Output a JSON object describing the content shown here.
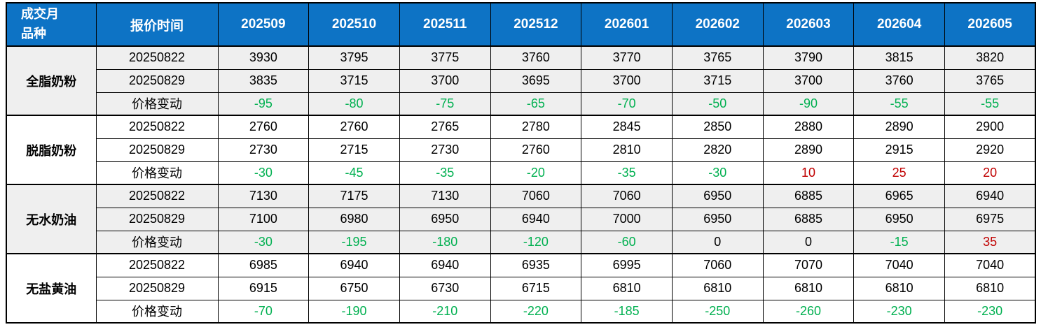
{
  "chart_data": {
    "type": "table",
    "corner_header": {
      "line1": "成交月",
      "line2": "品种"
    },
    "quote_time_header": "报价时间",
    "month_headers": [
      "202509",
      "202510",
      "202511",
      "202512",
      "202601",
      "202602",
      "202603",
      "202604",
      "202605"
    ],
    "groups": [
      {
        "product": "全脂奶粉",
        "shaded": true,
        "rows": [
          {
            "label": "20250822",
            "type": "price",
            "values": [
              "3930",
              "3795",
              "3775",
              "3760",
              "3770",
              "3765",
              "3790",
              "3815",
              "3820"
            ]
          },
          {
            "label": "20250829",
            "type": "price",
            "values": [
              "3835",
              "3715",
              "3700",
              "3695",
              "3700",
              "3715",
              "3700",
              "3760",
              "3765"
            ]
          },
          {
            "label": "价格变动",
            "type": "change",
            "values": [
              "-95",
              "-80",
              "-75",
              "-65",
              "-70",
              "-50",
              "-90",
              "-55",
              "-55"
            ]
          }
        ]
      },
      {
        "product": "脱脂奶粉",
        "shaded": false,
        "rows": [
          {
            "label": "20250822",
            "type": "price",
            "values": [
              "2760",
              "2760",
              "2765",
              "2780",
              "2845",
              "2850",
              "2880",
              "2890",
              "2900"
            ]
          },
          {
            "label": "20250829",
            "type": "price",
            "values": [
              "2730",
              "2715",
              "2730",
              "2760",
              "2810",
              "2820",
              "2890",
              "2915",
              "2920"
            ]
          },
          {
            "label": "价格变动",
            "type": "change",
            "values": [
              "-30",
              "-45",
              "-35",
              "-20",
              "-35",
              "-30",
              "10",
              "25",
              "20"
            ]
          }
        ]
      },
      {
        "product": "无水奶油",
        "shaded": true,
        "rows": [
          {
            "label": "20250822",
            "type": "price",
            "values": [
              "7130",
              "7175",
              "7130",
              "7060",
              "7060",
              "6950",
              "6885",
              "6965",
              "6940"
            ]
          },
          {
            "label": "20250829",
            "type": "price",
            "values": [
              "7100",
              "6980",
              "6950",
              "6940",
              "7000",
              "6950",
              "6885",
              "6950",
              "6975"
            ]
          },
          {
            "label": "价格变动",
            "type": "change",
            "values": [
              "-30",
              "-195",
              "-180",
              "-120",
              "-60",
              "0",
              "0",
              "-15",
              "35"
            ]
          }
        ]
      },
      {
        "product": "无盐黄油",
        "shaded": false,
        "rows": [
          {
            "label": "20250822",
            "type": "price",
            "values": [
              "6985",
              "6940",
              "6940",
              "6935",
              "6995",
              "7060",
              "7070",
              "7040",
              "7040"
            ]
          },
          {
            "label": "20250829",
            "type": "price",
            "values": [
              "6915",
              "6750",
              "6730",
              "6715",
              "6810",
              "6810",
              "6810",
              "6810",
              "6810"
            ]
          },
          {
            "label": "价格变动",
            "type": "change",
            "values": [
              "-70",
              "-190",
              "-210",
              "-220",
              "-185",
              "-250",
              "-260",
              "-230",
              "-230"
            ]
          }
        ]
      }
    ],
    "colors": {
      "header_bg": "#0d73c5",
      "header_text": "#ffffff",
      "negative_change": "#00b050",
      "positive_change": "#c00000",
      "zero_change": "#000000",
      "shaded_row_bg": "#efefef",
      "border": "#000000"
    }
  }
}
